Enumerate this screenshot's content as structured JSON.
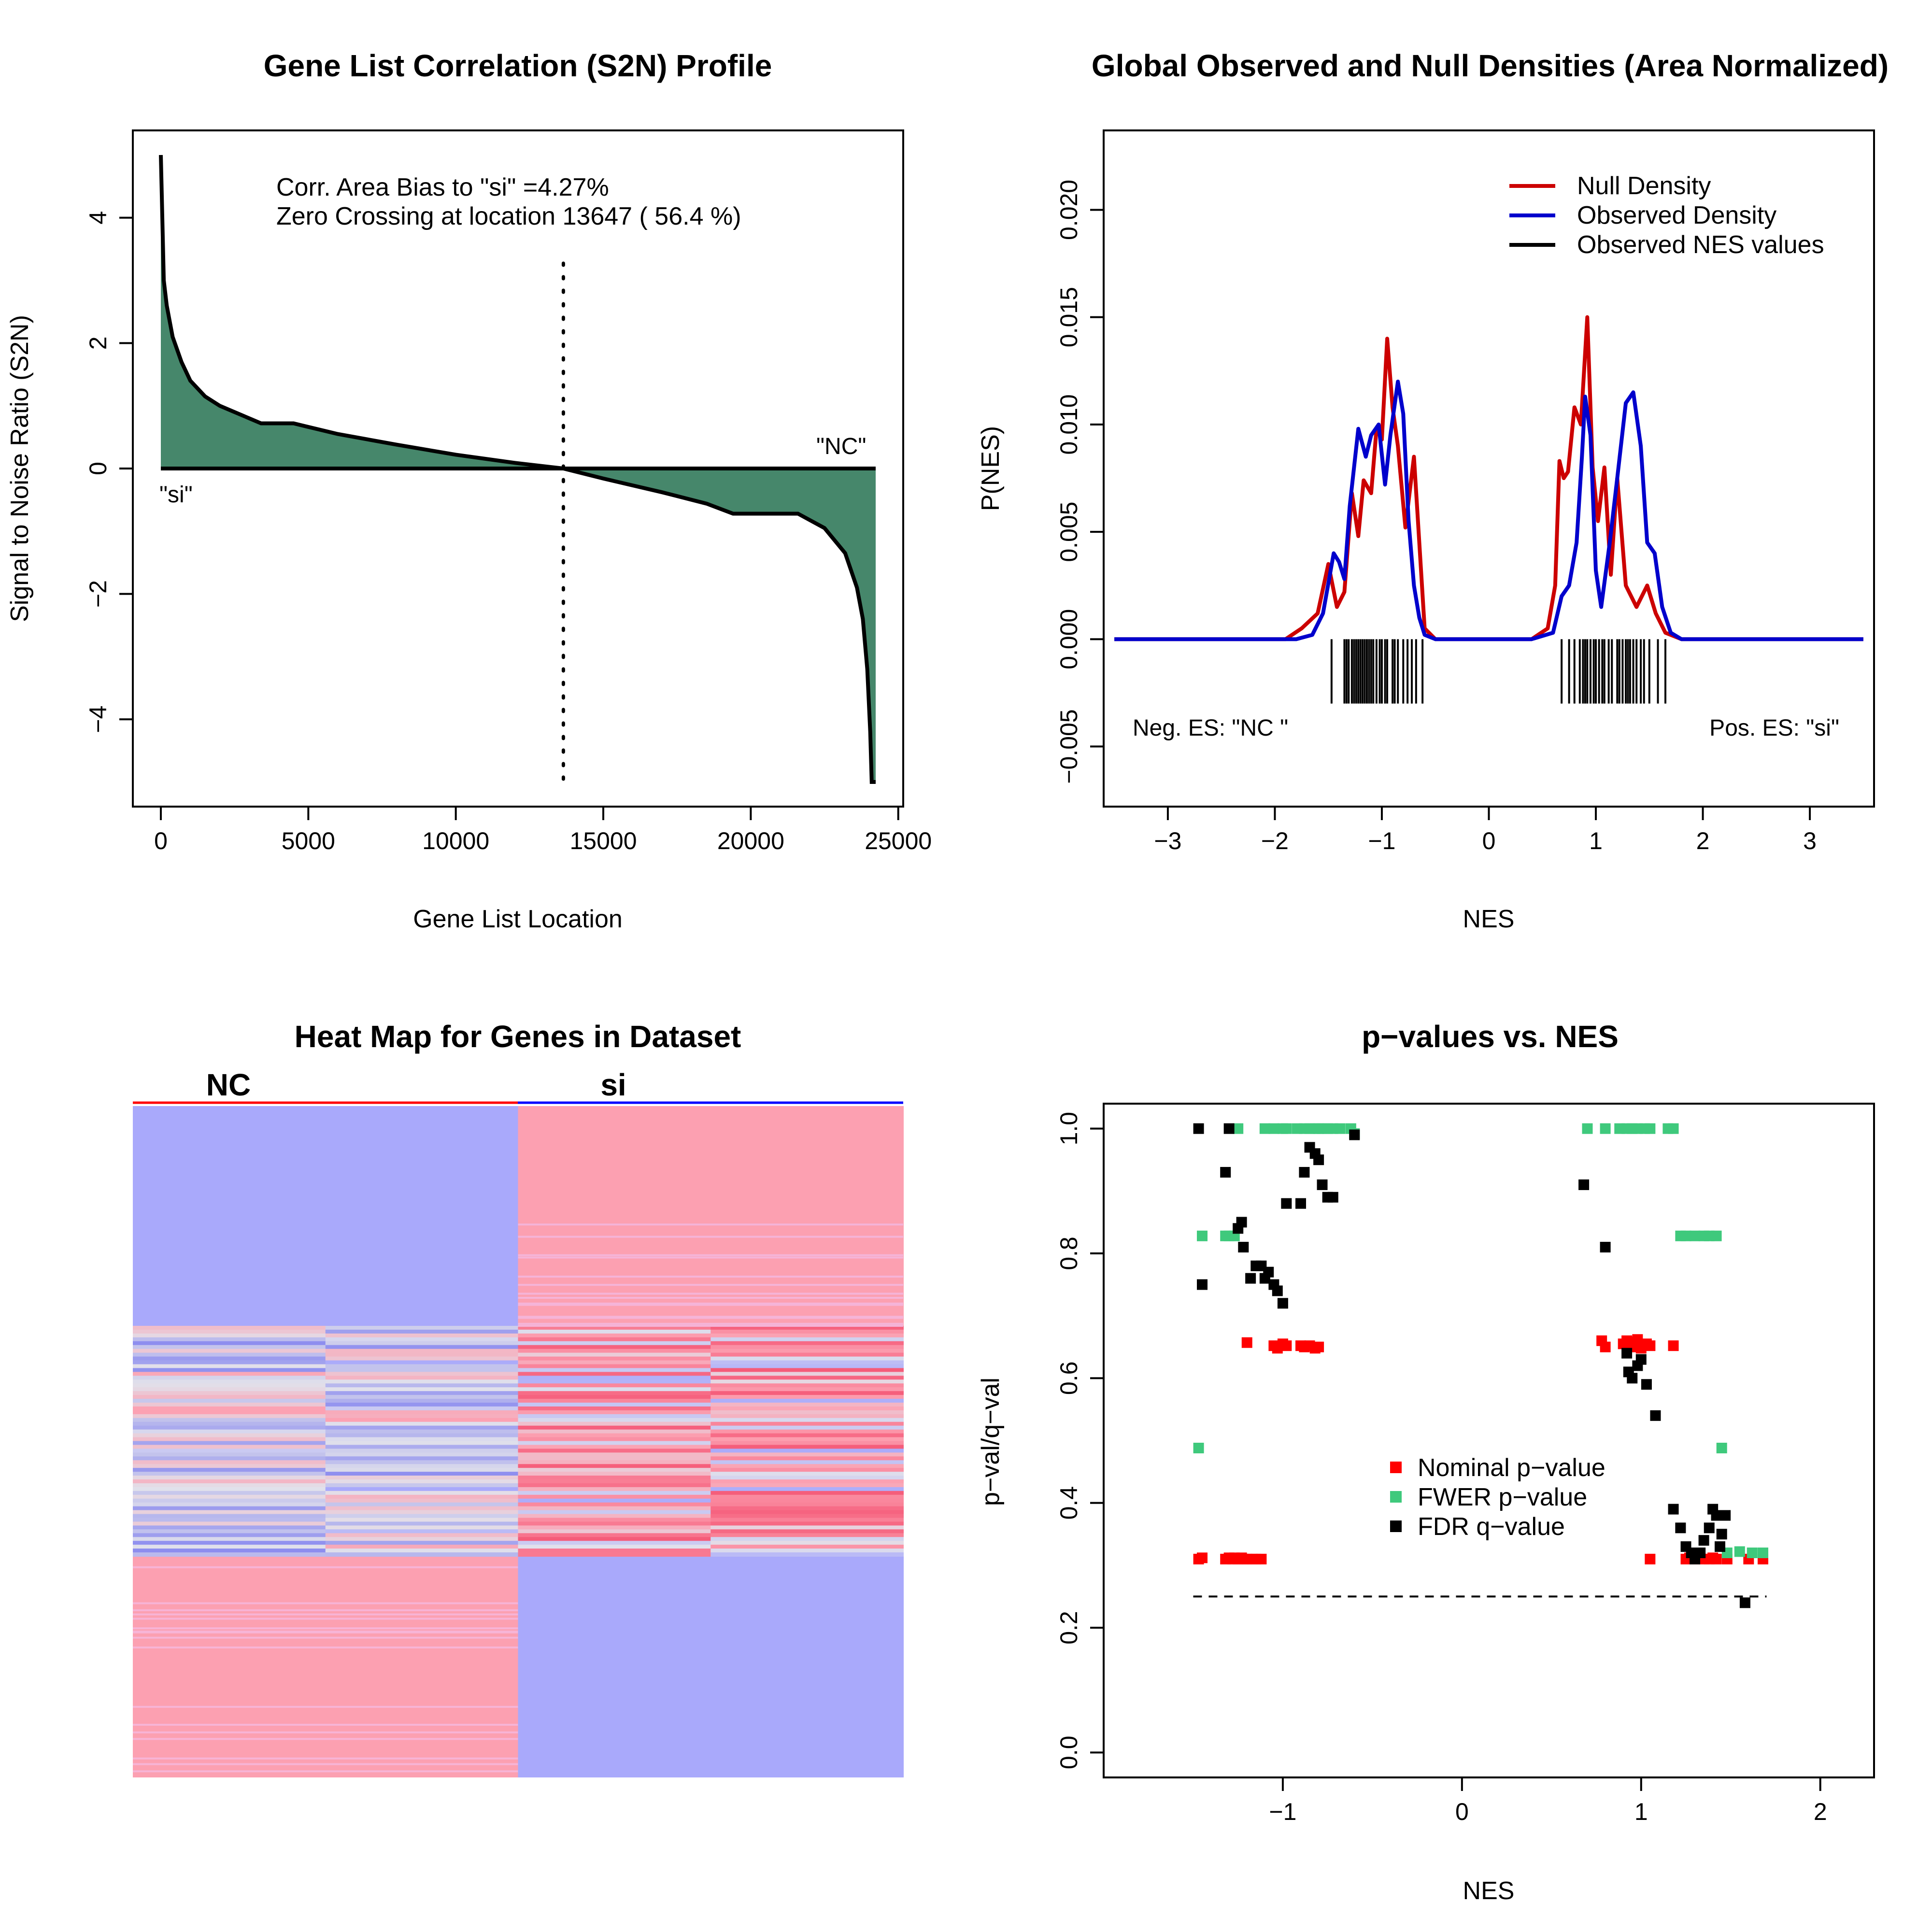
{
  "colors": {
    "fill_green": "#46876b",
    "null_red": "#cc0000",
    "observed_blue": "#0000cc",
    "heat_blue": "#a9a9fb",
    "heat_red": "#fca0b1",
    "nominal_red": "#ff0000",
    "fwer_green": "#3fc97c",
    "fdr_black": "#000000"
  },
  "chart_data": [
    {
      "type": "area",
      "title": "Gene List Correlation (S2N) Profile",
      "xlabel": "Gene List Location",
      "ylabel": "Signal to Noise Ratio (S2N)",
      "xlim": [
        0,
        24235
      ],
      "ylim": [
        -5.2,
        5.2
      ],
      "xticks": [
        0,
        5000,
        10000,
        15000,
        20000,
        25000
      ],
      "xtick_labels": [
        "0",
        "5000",
        "10000",
        "15000",
        "20000",
        "25000"
      ],
      "yticks": [
        -4,
        -2,
        0,
        2,
        4
      ],
      "ytick_labels": [
        "−4",
        "−2",
        "0",
        "2",
        "4"
      ],
      "annotations": [
        "Corr. Area Bias to \"si\" =4.27%",
        "Zero Crossing at location  13647  ( 56.4  %)"
      ],
      "left_class_label": "\"si\"",
      "right_class_label": "\"NC\"",
      "zero_crossing": 13647,
      "x": [
        0,
        100,
        200,
        400,
        700,
        1000,
        1500,
        2000,
        2500,
        3000,
        3400,
        4500,
        6000,
        8000,
        10000,
        12000,
        13647,
        15000,
        17000,
        18500,
        19400,
        21600,
        22500,
        23200,
        23600,
        23800,
        23950,
        24050,
        24100,
        24235
      ],
      "values": [
        5.0,
        3.0,
        2.6,
        2.1,
        1.7,
        1.4,
        1.15,
        1.0,
        0.9,
        0.8,
        0.72,
        0.72,
        0.55,
        0.38,
        0.22,
        0.09,
        0.0,
        -0.16,
        -0.38,
        -0.56,
        -0.72,
        -0.72,
        -0.95,
        -1.35,
        -1.9,
        -2.4,
        -3.2,
        -4.2,
        -5.0,
        -5.0
      ]
    },
    {
      "type": "line",
      "title": "Global Observed and Null Densities (Area Normalized)",
      "xlabel": "NES",
      "ylabel": "P(NES)",
      "xlim": [
        -3.6,
        3.6
      ],
      "ylim": [
        -0.0078,
        0.0237
      ],
      "xticks": [
        -3,
        -2,
        -1,
        0,
        1,
        2,
        3
      ],
      "xtick_labels": [
        "−3",
        "−2",
        "−1",
        "0",
        "1",
        "2",
        "3"
      ],
      "yticks": [
        -0.005,
        0.0,
        0.005,
        0.01,
        0.015,
        0.02
      ],
      "ytick_labels": [
        "−0.005",
        "0.000",
        "0.005",
        "0.010",
        "0.015",
        "0.020"
      ],
      "legend": "top-right",
      "legend_entries": [
        "Null Density",
        "Observed Density",
        "Observed NES values"
      ],
      "neg_label": "Neg. ES: \"NC \"",
      "pos_label": "Pos. ES: \"si\"",
      "series": [
        {
          "name": "Null Density",
          "x": [
            -3.5,
            -1.9,
            -1.75,
            -1.6,
            -1.5,
            -1.42,
            -1.35,
            -1.28,
            -1.22,
            -1.17,
            -1.1,
            -1.05,
            -1.0,
            -0.95,
            -0.9,
            -0.85,
            -0.78,
            -0.7,
            -0.65,
            -0.6,
            -0.5,
            -0.4,
            0.4,
            0.55,
            0.62,
            0.66,
            0.7,
            0.74,
            0.8,
            0.86,
            0.92,
            0.97,
            1.02,
            1.08,
            1.14,
            1.2,
            1.28,
            1.38,
            1.48,
            1.56,
            1.65,
            1.8,
            3.5
          ],
          "values": [
            0.0,
            0.0,
            0.0005,
            0.0012,
            0.0035,
            0.0015,
            0.0022,
            0.0068,
            0.0048,
            0.0074,
            0.0068,
            0.0098,
            0.0093,
            0.014,
            0.0108,
            0.009,
            0.0052,
            0.0085,
            0.0045,
            0.0005,
            0.0,
            0.0,
            0.0,
            0.0005,
            0.0025,
            0.0083,
            0.0075,
            0.0078,
            0.0108,
            0.01,
            0.015,
            0.008,
            0.0055,
            0.008,
            0.003,
            0.0075,
            0.0025,
            0.0015,
            0.0025,
            0.0012,
            0.0003,
            0.0,
            0.0
          ]
        },
        {
          "name": "Observed Density",
          "x": [
            -3.5,
            -1.8,
            -1.65,
            -1.55,
            -1.45,
            -1.4,
            -1.35,
            -1.3,
            -1.22,
            -1.15,
            -1.1,
            -1.03,
            -0.97,
            -0.92,
            -0.85,
            -0.8,
            -0.75,
            -0.7,
            -0.65,
            -0.6,
            -0.5,
            -0.4,
            0.4,
            0.6,
            0.68,
            0.75,
            0.82,
            0.87,
            0.9,
            0.95,
            1.0,
            1.05,
            1.13,
            1.2,
            1.28,
            1.35,
            1.42,
            1.48,
            1.55,
            1.62,
            1.7,
            1.8,
            3.5
          ],
          "values": [
            0.0,
            0.0,
            0.0002,
            0.0012,
            0.004,
            0.0036,
            0.0028,
            0.0062,
            0.0098,
            0.0085,
            0.0095,
            0.01,
            0.0072,
            0.0095,
            0.012,
            0.0105,
            0.0055,
            0.0025,
            0.001,
            0.0002,
            0.0,
            0.0,
            0.0,
            0.0003,
            0.002,
            0.0025,
            0.0045,
            0.0085,
            0.0113,
            0.0095,
            0.0032,
            0.0015,
            0.0045,
            0.0075,
            0.011,
            0.0115,
            0.009,
            0.0045,
            0.004,
            0.0015,
            0.0003,
            0.0,
            0.0
          ]
        }
      ],
      "observed_nes_values": [
        -1.47,
        -1.35,
        -1.33,
        -1.31,
        -1.28,
        -1.26,
        -1.24,
        -1.22,
        -1.2,
        -1.18,
        -1.16,
        -1.14,
        -1.12,
        -1.1,
        -1.08,
        -1.05,
        -1.02,
        -1.0,
        -0.97,
        -0.95,
        -0.9,
        -0.88,
        -0.85,
        -0.8,
        -0.76,
        -0.72,
        -0.68,
        -0.62,
        0.68,
        0.75,
        0.8,
        0.85,
        0.88,
        0.9,
        0.92,
        0.95,
        0.98,
        1.0,
        1.03,
        1.06,
        1.08,
        1.12,
        1.15,
        1.2,
        1.22,
        1.25,
        1.28,
        1.3,
        1.32,
        1.35,
        1.38,
        1.42,
        1.45,
        1.5,
        1.58,
        1.65
      ]
    },
    {
      "type": "heatmap",
      "title": "Heat Map for Genes in Dataset",
      "columns": [
        "NC",
        "si"
      ],
      "column_header_colors": [
        "#ff0000",
        "#0000ff"
      ],
      "samples_per_group": 2,
      "row_blocks": [
        {
          "rows": 60,
          "pattern": "NC high-blue / si red"
        },
        {
          "rows": 60,
          "pattern": "mixed"
        },
        {
          "rows": 60,
          "pattern": "NC red / si blue"
        }
      ]
    },
    {
      "type": "scatter",
      "title": "p−values vs. NES",
      "xlabel": "NES",
      "ylabel": "p−val/q−val",
      "xlim": [
        -2.0,
        2.3
      ],
      "ylim": [
        -0.04,
        1.04
      ],
      "xticks": [
        -1,
        0,
        1,
        2
      ],
      "xtick_labels": [
        "−1",
        "0",
        "1",
        "2"
      ],
      "yticks": [
        0.0,
        0.2,
        0.4,
        0.6,
        0.8,
        1.0
      ],
      "ytick_labels": [
        "0.0",
        "0.2",
        "0.4",
        "0.6",
        "0.8",
        "1.0"
      ],
      "legend": "center",
      "threshold": 0.25,
      "threshold_x": [
        -1.5,
        1.7
      ],
      "series": [
        {
          "name": "Nominal p−value",
          "x": [
            -1.47,
            -1.45,
            -1.32,
            -1.3,
            -1.28,
            -1.27,
            -1.25,
            -1.23,
            -1.22,
            -1.2,
            -1.17,
            -1.15,
            -1.12,
            -1.2,
            -1.05,
            -1.03,
            -1.0,
            -0.98,
            -0.9,
            -0.88,
            -0.85,
            -0.82,
            -0.8,
            0.78,
            0.8,
            0.9,
            0.92,
            0.95,
            0.97,
            0.98,
            1.0,
            1.03,
            1.05,
            1.18,
            1.05,
            1.25,
            1.27,
            1.3,
            1.32,
            1.35,
            1.38,
            1.4,
            1.42,
            1.48,
            1.6,
            1.68
          ],
          "values": [
            0.31,
            0.312,
            0.31,
            0.312,
            0.31,
            0.312,
            0.31,
            0.312,
            0.31,
            0.31,
            0.31,
            0.31,
            0.31,
            0.657,
            0.652,
            0.648,
            0.655,
            0.652,
            0.652,
            0.65,
            0.652,
            0.648,
            0.65,
            0.66,
            0.65,
            0.655,
            0.66,
            0.65,
            0.658,
            0.662,
            0.648,
            0.655,
            0.652,
            0.652,
            0.31,
            0.31,
            0.312,
            0.31,
            0.312,
            0.31,
            0.31,
            0.312,
            0.31,
            0.31,
            0.31,
            0.31
          ]
        },
        {
          "name": "FWER p−value",
          "x": [
            -1.47,
            -1.45,
            -1.32,
            -1.3,
            -1.27,
            -1.25,
            -1.1,
            -1.05,
            -1.0,
            -0.98,
            -0.92,
            -0.88,
            -0.85,
            -0.82,
            -0.8,
            -0.78,
            -0.75,
            -0.72,
            -0.68,
            -0.62,
            -0.6,
            0.7,
            0.8,
            0.88,
            0.92,
            0.95,
            0.98,
            1.02,
            1.05,
            1.15,
            1.18,
            1.22,
            1.25,
            1.3,
            1.35,
            1.38,
            1.42,
            1.45,
            1.48,
            1.55,
            1.62,
            1.68
          ],
          "values": [
            0.488,
            0.828,
            0.828,
            0.828,
            0.828,
            1.0,
            1.0,
            1.0,
            1.0,
            1.0,
            1.0,
            1.0,
            1.0,
            1.0,
            1.0,
            1.0,
            1.0,
            1.0,
            1.0,
            1.0,
            0.992,
            1.0,
            1.0,
            1.0,
            1.0,
            1.0,
            1.0,
            1.0,
            1.0,
            1.0,
            1.0,
            0.828,
            0.828,
            0.828,
            0.828,
            0.828,
            0.828,
            0.488,
            0.32,
            0.322,
            0.32,
            0.32
          ]
        },
        {
          "name": "FDR q−value",
          "x": [
            -1.47,
            -1.3,
            -1.45,
            -1.32,
            -1.25,
            -1.23,
            -1.22,
            -1.18,
            -1.15,
            -1.12,
            -1.1,
            -1.08,
            -1.05,
            -1.03,
            -1.0,
            -0.98,
            -0.9,
            -0.88,
            -0.85,
            -0.82,
            -0.8,
            -0.78,
            -0.75,
            -0.72,
            -0.6,
            0.68,
            0.8,
            0.92,
            0.93,
            0.95,
            0.98,
            1.0,
            1.03,
            1.08,
            1.18,
            1.22,
            1.25,
            1.28,
            1.3,
            1.33,
            1.35,
            1.38,
            1.4,
            1.42,
            1.44,
            1.45,
            1.47,
            1.58
          ],
          "values": [
            1.0,
            1.0,
            0.75,
            0.93,
            0.84,
            0.85,
            0.81,
            0.76,
            0.78,
            0.78,
            0.76,
            0.77,
            0.75,
            0.74,
            0.72,
            0.88,
            0.88,
            0.93,
            0.97,
            0.96,
            0.95,
            0.91,
            0.89,
            0.89,
            0.99,
            0.91,
            0.81,
            0.64,
            0.61,
            0.6,
            0.62,
            0.63,
            0.59,
            0.54,
            0.39,
            0.36,
            0.33,
            0.32,
            0.31,
            0.32,
            0.34,
            0.36,
            0.39,
            0.38,
            0.33,
            0.35,
            0.38,
            0.24
          ]
        }
      ]
    }
  ]
}
